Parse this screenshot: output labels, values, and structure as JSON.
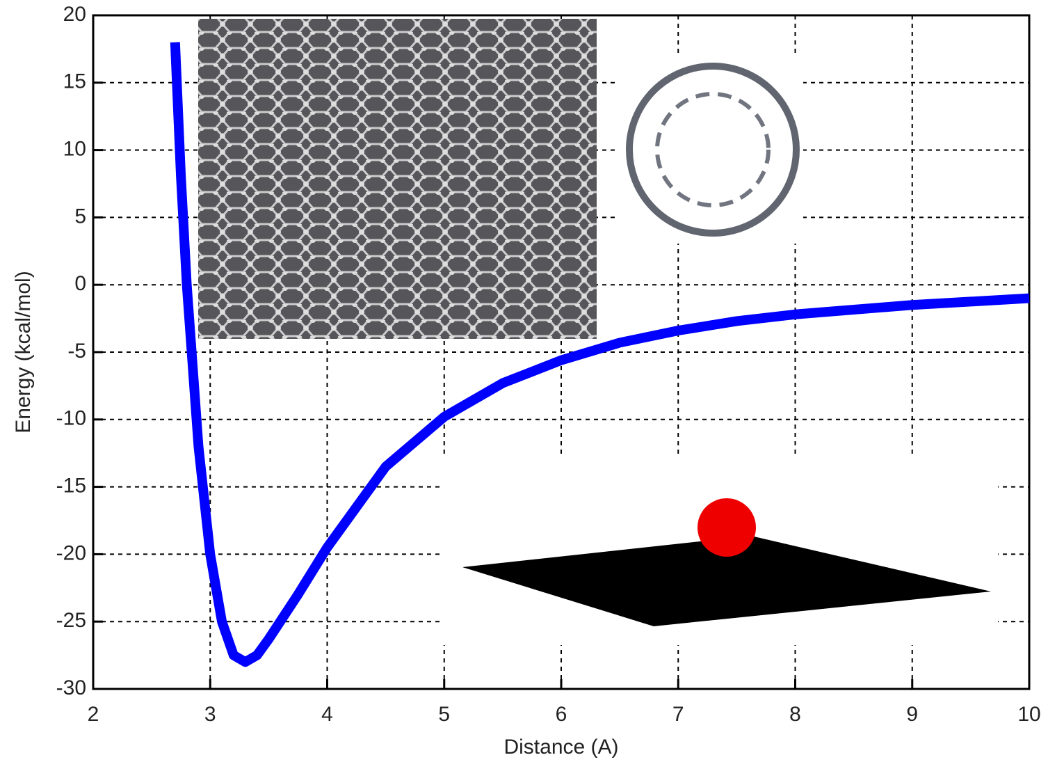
{
  "chart_data": {
    "type": "line",
    "x_label": "Distance (A)",
    "y_label": "Energy (kcal/mol)",
    "x": [
      2.7,
      2.75,
      2.8,
      2.9,
      3.0,
      3.1,
      3.2,
      3.3,
      3.4,
      3.5,
      3.75,
      4.0,
      4.5,
      5.0,
      5.5,
      6.0,
      6.5,
      7.0,
      7.5,
      8.0,
      9.0,
      10.0
    ],
    "series": [
      {
        "color": "#0000ff",
        "values": [
          18,
          8,
          0,
          -12,
          -20,
          -25,
          -27.5,
          -28,
          -27.5,
          -26.3,
          -23,
          -19.5,
          -13.5,
          -9.8,
          -7.3,
          -5.6,
          -4.3,
          -3.4,
          -2.7,
          -2.2,
          -1.5,
          -1.0
        ]
      }
    ],
    "xlim": [
      2,
      10
    ],
    "xticks": [
      2,
      3,
      4,
      5,
      6,
      7,
      8,
      9,
      10
    ],
    "ylim": [
      -30,
      20
    ],
    "yticks": [
      -30,
      -25,
      -20,
      -15,
      -10,
      -5,
      0,
      5,
      10,
      15,
      20
    ],
    "grid": true
  }
}
